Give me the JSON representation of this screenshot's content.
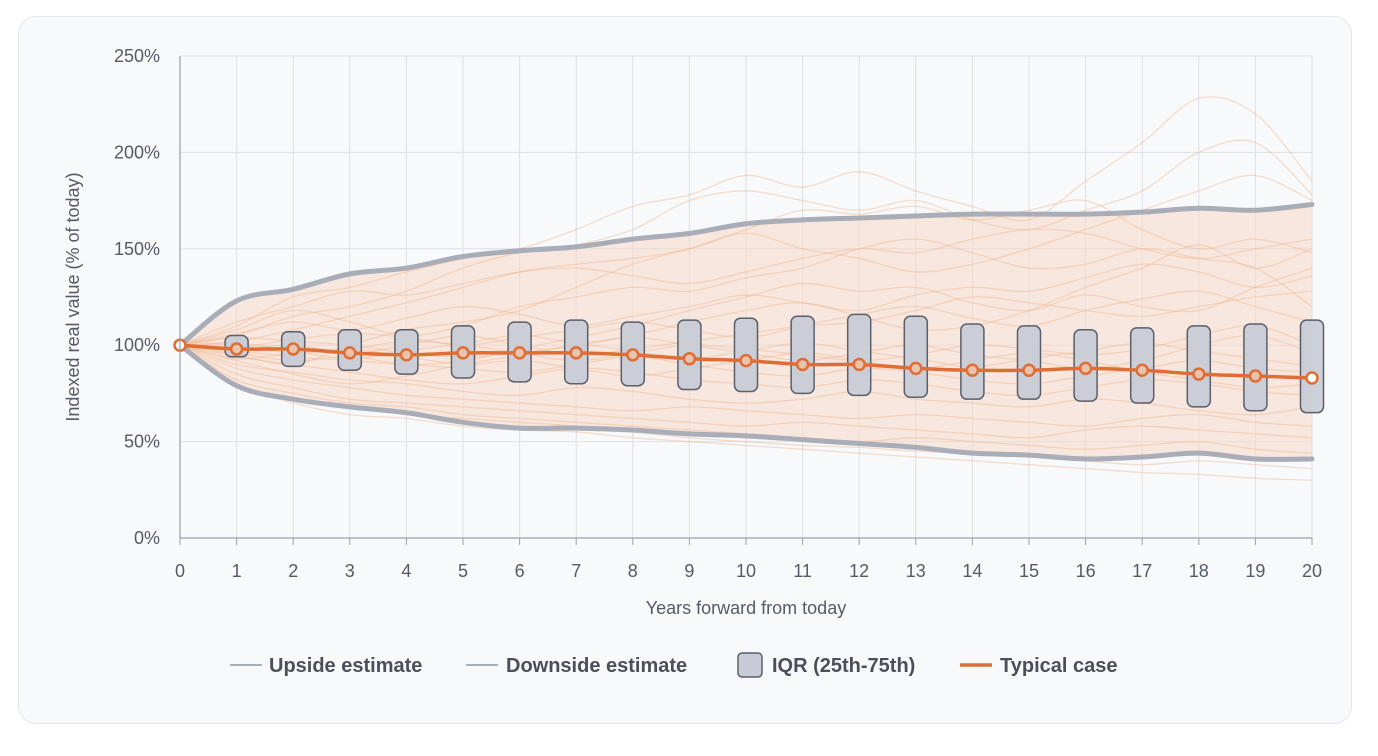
{
  "chart_data": {
    "type": "line",
    "title": "",
    "xlabel": "Years forward from today",
    "ylabel": "Indexed real value (% of today)",
    "x": [
      0,
      1,
      2,
      3,
      4,
      5,
      6,
      7,
      8,
      9,
      10,
      11,
      12,
      13,
      14,
      15,
      16,
      17,
      18,
      19,
      20
    ],
    "xlim": [
      0,
      20
    ],
    "ylim": [
      0,
      250
    ],
    "y_ticks": [
      0,
      50,
      100,
      150,
      200,
      250
    ],
    "y_tick_labels": [
      "0%",
      "50%",
      "100%",
      "150%",
      "200%",
      "250%"
    ],
    "x_tick_labels": [
      "0",
      "1",
      "2",
      "3",
      "4",
      "5",
      "6",
      "7",
      "8",
      "9",
      "10",
      "11",
      "12",
      "13",
      "14",
      "15",
      "16",
      "17",
      "18",
      "19",
      "20"
    ],
    "grid": true,
    "legend_position": "bottom",
    "series": [
      {
        "name": "Upside estimate",
        "color": "#a9adb8",
        "values": [
          100,
          123,
          129,
          137,
          140,
          146,
          149,
          151,
          155,
          158,
          163,
          165,
          166,
          167,
          168,
          168,
          168,
          169,
          171,
          170,
          173
        ]
      },
      {
        "name": "Downside estimate",
        "color": "#a9adb8",
        "values": [
          100,
          79,
          72,
          68,
          65,
          60,
          57,
          57,
          56,
          54,
          53,
          51,
          49,
          47,
          44,
          43,
          41,
          42,
          44,
          41,
          41
        ]
      },
      {
        "name": "Typical case",
        "color": "#e06d34",
        "values": [
          100,
          98,
          98,
          96,
          95,
          96,
          96,
          96,
          95,
          93,
          92,
          90,
          90,
          88,
          87,
          87,
          88,
          87,
          85,
          84,
          83
        ]
      }
    ],
    "iqr": {
      "name": "IQR (25th-75th)",
      "color": "#c8ccd6",
      "low": [
        null,
        94,
        89,
        87,
        85,
        83,
        81,
        80,
        79,
        77,
        76,
        75,
        74,
        73,
        72,
        72,
        71,
        70,
        68,
        66,
        65
      ],
      "high": [
        null,
        105,
        107,
        108,
        108,
        110,
        112,
        113,
        112,
        113,
        114,
        115,
        116,
        115,
        111,
        110,
        108,
        109,
        110,
        111,
        113
      ]
    },
    "simulated_paths": {
      "color": "#f0b58e",
      "paths": [
        [
          100,
          110,
          125,
          130,
          138,
          145,
          150,
          160,
          172,
          178,
          188,
          182,
          190,
          180,
          172,
          165,
          185,
          205,
          228,
          220,
          185
        ],
        [
          100,
          105,
          115,
          120,
          128,
          140,
          148,
          152,
          160,
          175,
          180,
          175,
          170,
          175,
          165,
          160,
          170,
          180,
          200,
          205,
          178
        ],
        [
          100,
          95,
          90,
          100,
          108,
          112,
          118,
          130,
          142,
          150,
          158,
          150,
          145,
          138,
          142,
          150,
          160,
          170,
          180,
          188,
          175
        ],
        [
          100,
          102,
          108,
          115,
          122,
          130,
          138,
          142,
          145,
          150,
          160,
          170,
          168,
          172,
          165,
          170,
          175,
          160,
          150,
          155,
          148
        ],
        [
          100,
          108,
          118,
          112,
          105,
          110,
          120,
          125,
          130,
          128,
          135,
          140,
          150,
          155,
          148,
          140,
          142,
          150,
          145,
          140,
          120
        ],
        [
          100,
          98,
          100,
          95,
          90,
          92,
          98,
          104,
          110,
          118,
          125,
          132,
          128,
          130,
          122,
          118,
          126,
          120,
          118,
          130,
          140
        ],
        [
          100,
          92,
          85,
          80,
          84,
          90,
          95,
          100,
          105,
          112,
          118,
          122,
          115,
          108,
          110,
          118,
          130,
          140,
          152,
          140,
          150
        ],
        [
          100,
          96,
          92,
          95,
          100,
          105,
          100,
          95,
          98,
          102,
          106,
          110,
          112,
          118,
          125,
          122,
          118,
          115,
          120,
          125,
          128
        ],
        [
          100,
          100,
          96,
          98,
          102,
          100,
          96,
          92,
          96,
          100,
          98,
          95,
          92,
          95,
          100,
          98,
          95,
          98,
          105,
          110,
          100
        ],
        [
          100,
          104,
          102,
          100,
          96,
          94,
          96,
          100,
          104,
          100,
          96,
          92,
          96,
          100,
          95,
          92,
          88,
          92,
          100,
          105,
          96
        ],
        [
          100,
          97,
          94,
          92,
          90,
          88,
          86,
          90,
          94,
          90,
          86,
          84,
          88,
          86,
          82,
          80,
          84,
          88,
          92,
          88,
          86
        ],
        [
          100,
          94,
          90,
          86,
          82,
          80,
          84,
          88,
          86,
          82,
          80,
          78,
          82,
          80,
          76,
          74,
          78,
          82,
          80,
          76,
          74
        ],
        [
          100,
          90,
          86,
          82,
          80,
          76,
          74,
          78,
          76,
          72,
          70,
          72,
          76,
          72,
          70,
          68,
          72,
          70,
          66,
          64,
          68
        ],
        [
          100,
          88,
          82,
          78,
          74,
          72,
          70,
          68,
          66,
          68,
          66,
          64,
          62,
          64,
          62,
          60,
          58,
          62,
          64,
          60,
          58
        ],
        [
          100,
          85,
          78,
          72,
          70,
          68,
          66,
          64,
          62,
          60,
          58,
          60,
          58,
          56,
          54,
          52,
          56,
          58,
          56,
          54,
          52
        ],
        [
          100,
          82,
          75,
          70,
          68,
          64,
          62,
          60,
          58,
          56,
          54,
          52,
          50,
          52,
          50,
          48,
          46,
          48,
          50,
          46,
          44
        ],
        [
          100,
          80,
          72,
          68,
          64,
          62,
          60,
          58,
          55,
          52,
          50,
          48,
          47,
          45,
          44,
          42,
          40,
          38,
          40,
          38,
          36
        ],
        [
          100,
          80,
          70,
          64,
          62,
          58,
          56,
          55,
          52,
          50,
          48,
          46,
          44,
          42,
          40,
          38,
          36,
          34,
          33,
          31,
          30
        ],
        [
          100,
          112,
          120,
          128,
          126,
          132,
          138,
          140,
          136,
          132,
          138,
          145,
          150,
          148,
          155,
          160,
          158,
          150,
          145,
          150,
          155
        ],
        [
          100,
          106,
          112,
          108,
          114,
          120,
          116,
          110,
          115,
          120,
          126,
          122,
          118,
          126,
          130,
          128,
          135,
          142,
          138,
          130,
          136
        ],
        [
          100,
          99,
          103,
          106,
          104,
          100,
          104,
          108,
          112,
          108,
          104,
          110,
          116,
          120,
          114,
          110,
          118,
          124,
          128,
          120,
          112
        ],
        [
          100,
          93,
          96,
          98,
          94,
          90,
          92,
          88,
          84,
          88,
          92,
          96,
          92,
          88,
          92,
          96,
          92,
          86,
          82,
          78,
          80
        ],
        [
          100,
          101,
          97,
          93,
          97,
          101,
          105,
          101,
          97,
          93,
          97,
          101,
          97,
          93,
          89,
          93,
          97,
          101,
          97,
          93,
          89
        ]
      ]
    }
  }
}
